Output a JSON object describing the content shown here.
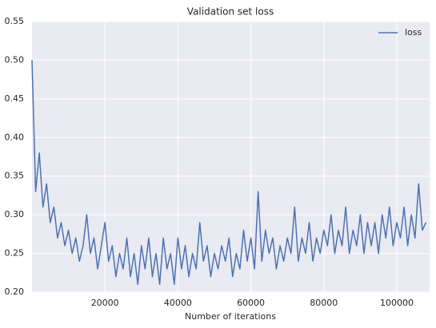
{
  "chart_data": {
    "type": "line",
    "title": "Validation set loss",
    "xlabel": "Number of iterations",
    "legend": "upper right",
    "grid": true,
    "xlim": [
      0,
      109000
    ],
    "ylim": [
      0.2,
      0.55
    ],
    "xticks": [
      20000,
      40000,
      60000,
      80000,
      100000
    ],
    "yticks": [
      {
        "value": 0.2,
        "label": "0.20"
      },
      0.25,
      {
        "value": 0.3,
        "label": "0.30"
      },
      0.35,
      {
        "value": 0.4,
        "label": "0.40"
      },
      0.45,
      {
        "value": 0.5,
        "label": "0.50"
      },
      0.55
    ],
    "x": [
      0,
      1000,
      2000,
      3000,
      4000,
      5000,
      6000,
      7000,
      8000,
      9000,
      10000,
      11000,
      12000,
      13000,
      14000,
      15000,
      16000,
      17000,
      18000,
      19000,
      20000,
      21000,
      22000,
      23000,
      24000,
      25000,
      26000,
      27000,
      28000,
      29000,
      30000,
      31000,
      32000,
      33000,
      34000,
      35000,
      36000,
      37000,
      38000,
      39000,
      40000,
      41000,
      42000,
      43000,
      44000,
      45000,
      46000,
      47000,
      48000,
      49000,
      50000,
      51000,
      52000,
      53000,
      54000,
      55000,
      56000,
      57000,
      58000,
      59000,
      60000,
      61000,
      62000,
      63000,
      64000,
      65000,
      66000,
      67000,
      68000,
      69000,
      70000,
      71000,
      72000,
      73000,
      74000,
      75000,
      76000,
      77000,
      78000,
      79000,
      80000,
      81000,
      82000,
      83000,
      84000,
      85000,
      86000,
      87000,
      88000,
      89000,
      90000,
      91000,
      92000,
      93000,
      94000,
      95000,
      96000,
      97000,
      98000,
      99000,
      100000,
      101000,
      102000,
      103000,
      104000,
      105000,
      106000,
      107000,
      108000
    ],
    "series": [
      {
        "name": "loss",
        "color": "#4c72b0",
        "values": [
          0.5,
          0.33,
          0.38,
          0.31,
          0.34,
          0.29,
          0.31,
          0.27,
          0.29,
          0.26,
          0.28,
          0.25,
          0.27,
          0.24,
          0.26,
          0.3,
          0.25,
          0.27,
          0.23,
          0.26,
          0.29,
          0.24,
          0.26,
          0.22,
          0.25,
          0.23,
          0.27,
          0.22,
          0.25,
          0.21,
          0.26,
          0.23,
          0.27,
          0.22,
          0.25,
          0.21,
          0.27,
          0.23,
          0.25,
          0.21,
          0.27,
          0.23,
          0.26,
          0.22,
          0.25,
          0.23,
          0.29,
          0.24,
          0.26,
          0.22,
          0.25,
          0.23,
          0.26,
          0.24,
          0.27,
          0.22,
          0.25,
          0.23,
          0.28,
          0.24,
          0.27,
          0.23,
          0.33,
          0.24,
          0.28,
          0.25,
          0.27,
          0.23,
          0.26,
          0.24,
          0.27,
          0.25,
          0.31,
          0.24,
          0.27,
          0.25,
          0.29,
          0.24,
          0.27,
          0.25,
          0.28,
          0.26,
          0.3,
          0.25,
          0.28,
          0.26,
          0.31,
          0.25,
          0.28,
          0.26,
          0.3,
          0.25,
          0.29,
          0.26,
          0.29,
          0.25,
          0.3,
          0.27,
          0.31,
          0.26,
          0.29,
          0.27,
          0.31,
          0.26,
          0.3,
          0.27,
          0.34,
          0.28,
          0.29
        ]
      }
    ]
  }
}
